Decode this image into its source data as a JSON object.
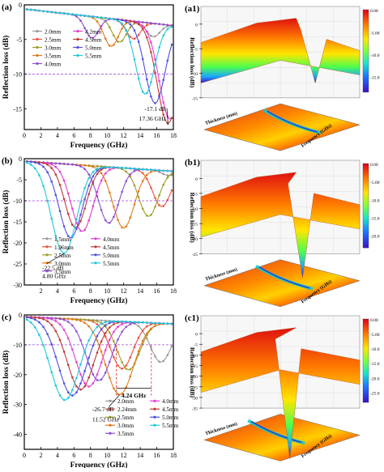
{
  "panels": [
    {
      "tag": "(a)",
      "ylabel": "Reflection loss (dB)",
      "xlabel": "Frequency (GHz)",
      "xlim": [
        0,
        18
      ],
      "ylim": [
        -18,
        0
      ],
      "yticks": [
        0,
        -5,
        -10,
        -15
      ],
      "xticks": [
        0,
        2,
        4,
        6,
        8,
        10,
        12,
        14,
        16,
        18
      ],
      "threshold": -10,
      "annotation": [
        "-17.1 dB",
        "17.36 GHz"
      ],
      "legend_cols": 2,
      "series": [
        {
          "name": "2.0mm",
          "color": "#9a9a9a",
          "fmin": 15.6,
          "rl": -4.6
        },
        {
          "name": "2.5mm",
          "color": "#e8533f",
          "fmin": 13.2,
          "rl": -4.9
        },
        {
          "name": "3.0mm",
          "color": "#9e9e2b",
          "fmin": 11.5,
          "rl": -5.4
        },
        {
          "name": "3.5mm",
          "color": "#e07a1b",
          "fmin": 10.5,
          "rl": -6.0
        },
        {
          "name": "4.0mm",
          "color": "#8c4dd6",
          "fmin": 8.2,
          "rl": -4.8
        },
        {
          "name": "4.2mm",
          "color": "#e43bd3",
          "fmin": 17.6,
          "rl": -16.5
        },
        {
          "name": "4.5mm",
          "color": "#c03a3a",
          "fmin": 17.36,
          "rl": -17.1
        },
        {
          "name": "5.0mm",
          "color": "#4f4fe0",
          "fmin": 15.8,
          "rl": -14.2
        },
        {
          "name": "5.5mm",
          "color": "#22c7d8",
          "fmin": 14.6,
          "rl": -12.9
        }
      ]
    },
    {
      "tag": "(b)",
      "ylabel": "Reflection loss (dB)",
      "xlabel": "Frequency (GHz)",
      "xlim": [
        0,
        18
      ],
      "ylim": [
        -30,
        0
      ],
      "yticks": [
        0,
        -5,
        -10,
        -15,
        -20,
        -25,
        -30
      ],
      "xticks": [
        2,
        4,
        6,
        8,
        10,
        12,
        14,
        16,
        18
      ],
      "threshold": -10,
      "annotation": [
        "-22.5 dB",
        "4.80 GHz"
      ],
      "legend_cols": 2,
      "series": [
        {
          "name": "1.5mm",
          "color": "#9a9a9a",
          "fmin": 17.5,
          "rl": -4.0
        },
        {
          "name": "1.96mm",
          "color": "#e8533f",
          "fmin": 16.6,
          "rl": -11.4
        },
        {
          "name": "2.5mm",
          "color": "#9e9e2b",
          "fmin": 15.0,
          "rl": -13.7
        },
        {
          "name": "3.0mm",
          "color": "#e07a1b",
          "fmin": 12.0,
          "rl": -16.5
        },
        {
          "name": "3.5mm",
          "color": "#8c4dd6",
          "fmin": 10.2,
          "rl": -15.3
        },
        {
          "name": "4.0mm",
          "color": "#e43bd3",
          "fmin": 7.0,
          "rl": -17.3
        },
        {
          "name": "4.5mm",
          "color": "#c03a3a",
          "fmin": 6.2,
          "rl": -16.4
        },
        {
          "name": "5.0mm",
          "color": "#4f4fe0",
          "fmin": 5.6,
          "rl": -18.8
        },
        {
          "name": "5.5mm",
          "color": "#22c7d8",
          "fmin": 4.8,
          "rl": -22.5
        }
      ]
    },
    {
      "tag": "(c)",
      "ylabel": "Reflection loss (dB)",
      "xlabel": "Frequency (GHz)",
      "xlim": [
        0,
        18
      ],
      "ylim": [
        -45,
        0
      ],
      "yticks": [
        0,
        -10,
        -20,
        -30,
        -40
      ],
      "xticks": [
        0,
        2,
        4,
        6,
        8,
        10,
        12,
        14,
        16,
        18
      ],
      "threshold": -10,
      "annotation": [
        "-26.7 dB",
        "11.52 GHz"
      ],
      "span_label": "4.24 GHz",
      "legend_cols": 2,
      "series": [
        {
          "name": "2.0mm",
          "color": "#9a9a9a",
          "fmin": 16.5,
          "rl": -15.8
        },
        {
          "name": "2.24mm",
          "color": "#e8533f",
          "fmin": 11.8,
          "rl": -18.0
        },
        {
          "name": "2.5mm",
          "color": "#9e9e2b",
          "fmin": 12.6,
          "rl": -18.4
        },
        {
          "name": "3.0mm",
          "color": "#e07a1b",
          "fmin": 11.52,
          "rl": -26.7
        },
        {
          "name": "3.5mm",
          "color": "#8c4dd6",
          "fmin": 9.0,
          "rl": -22.0
        },
        {
          "name": "4.0mm",
          "color": "#e43bd3",
          "fmin": 7.8,
          "rl": -24.0
        },
        {
          "name": "4.5mm",
          "color": "#c03a3a",
          "fmin": 6.8,
          "rl": -25.0
        },
        {
          "name": "5.0mm",
          "color": "#4f4fe0",
          "fmin": 5.8,
          "rl": -27.0
        },
        {
          "name": "5.5mm",
          "color": "#22c7d8",
          "fmin": 4.9,
          "rl": -28.5
        }
      ]
    }
  ],
  "panels3d": [
    {
      "tag": "(a1)",
      "zlabel": "Reflection loss (dB)",
      "xlabel": "Thickness (mm)",
      "ylabel": "Frequency (GHz)",
      "colorbar": [
        "0.00",
        "-5.00",
        "-10.0",
        "-15.0"
      ],
      "zticks": [
        "0",
        "-5",
        "-10",
        "-15"
      ]
    },
    {
      "tag": "(b1)",
      "zlabel": "Reflection loss (dB)",
      "xlabel": "Thickness (mm)",
      "ylabel": "Frequency (GHz)",
      "colorbar": [
        "0.00",
        "-5.00",
        "-10.0",
        "-15.0",
        "-20.0"
      ],
      "zticks": [
        "0",
        "-5",
        "-10",
        "-15",
        "-20",
        "-25"
      ]
    },
    {
      "tag": "(c1)",
      "zlabel": "Reflection loss (dB)",
      "xlabel": "Thickness (mm)",
      "ylabel": "Frequency (GHz)",
      "colorbar": [
        "0.00",
        "-5.00",
        "-10.0",
        "-15.0",
        "-20.0",
        "-25.0"
      ],
      "zticks": [
        "0",
        "-5",
        "-10",
        "-15",
        "-20",
        "-25",
        "-30",
        "-35"
      ]
    }
  ],
  "chart_data": [
    {
      "type": "line",
      "xlabel": "Frequency (GHz)",
      "ylabel": "Reflection loss (dB)",
      "xlim": [
        0,
        18
      ],
      "ylim": [
        -18,
        0
      ],
      "series": [
        {
          "name": "2.0mm",
          "min_rl_db": -4.6,
          "min_freq_ghz": 15.6
        },
        {
          "name": "2.5mm",
          "min_rl_db": -4.9,
          "min_freq_ghz": 13.2
        },
        {
          "name": "3.0mm",
          "min_rl_db": -5.4,
          "min_freq_ghz": 11.5
        },
        {
          "name": "3.5mm",
          "min_rl_db": -6.0,
          "min_freq_ghz": 10.5
        },
        {
          "name": "4.0mm",
          "min_rl_db": -4.8,
          "min_freq_ghz": 8.2
        },
        {
          "name": "4.2mm",
          "min_rl_db": -16.5,
          "min_freq_ghz": 17.6
        },
        {
          "name": "4.5mm",
          "min_rl_db": -17.1,
          "min_freq_ghz": 17.36
        },
        {
          "name": "5.0mm",
          "min_rl_db": -14.2,
          "min_freq_ghz": 15.8
        },
        {
          "name": "5.5mm",
          "min_rl_db": -12.9,
          "min_freq_ghz": 14.6
        }
      ]
    },
    {
      "type": "line",
      "xlabel": "Frequency (GHz)",
      "ylabel": "Reflection loss (dB)",
      "xlim": [
        0,
        18
      ],
      "ylim": [
        -30,
        0
      ],
      "series": [
        {
          "name": "1.5mm",
          "min_rl_db": -4.0,
          "min_freq_ghz": 17.5
        },
        {
          "name": "1.96mm",
          "min_rl_db": -11.4,
          "min_freq_ghz": 16.6
        },
        {
          "name": "2.5mm",
          "min_rl_db": -13.7,
          "min_freq_ghz": 15.0
        },
        {
          "name": "3.0mm",
          "min_rl_db": -16.5,
          "min_freq_ghz": 12.0
        },
        {
          "name": "3.5mm",
          "min_rl_db": -15.3,
          "min_freq_ghz": 10.2
        },
        {
          "name": "4.0mm",
          "min_rl_db": -17.3,
          "min_freq_ghz": 7.0
        },
        {
          "name": "4.5mm",
          "min_rl_db": -16.4,
          "min_freq_ghz": 6.2
        },
        {
          "name": "5.0mm",
          "min_rl_db": -18.8,
          "min_freq_ghz": 5.6
        },
        {
          "name": "5.5mm",
          "min_rl_db": -22.5,
          "min_freq_ghz": 4.8
        }
      ]
    },
    {
      "type": "line",
      "xlabel": "Frequency (GHz)",
      "ylabel": "Reflection loss (dB)",
      "xlim": [
        0,
        18
      ],
      "ylim": [
        -45,
        0
      ],
      "series": [
        {
          "name": "2.0mm",
          "min_rl_db": -15.8,
          "min_freq_ghz": 16.5
        },
        {
          "name": "2.24mm",
          "min_rl_db": -18.0,
          "min_freq_ghz": 11.8
        },
        {
          "name": "2.5mm",
          "min_rl_db": -18.4,
          "min_freq_ghz": 12.6
        },
        {
          "name": "3.0mm",
          "min_rl_db": -26.7,
          "min_freq_ghz": 11.52
        },
        {
          "name": "3.5mm",
          "min_rl_db": -22.0,
          "min_freq_ghz": 9.0
        },
        {
          "name": "4.0mm",
          "min_rl_db": -24.0,
          "min_freq_ghz": 7.8
        },
        {
          "name": "4.5mm",
          "min_rl_db": -25.0,
          "min_freq_ghz": 6.8
        },
        {
          "name": "5.0mm",
          "min_rl_db": -27.0,
          "min_freq_ghz": 5.8
        },
        {
          "name": "5.5mm",
          "min_rl_db": -28.5,
          "min_freq_ghz": 4.9
        }
      ]
    }
  ]
}
